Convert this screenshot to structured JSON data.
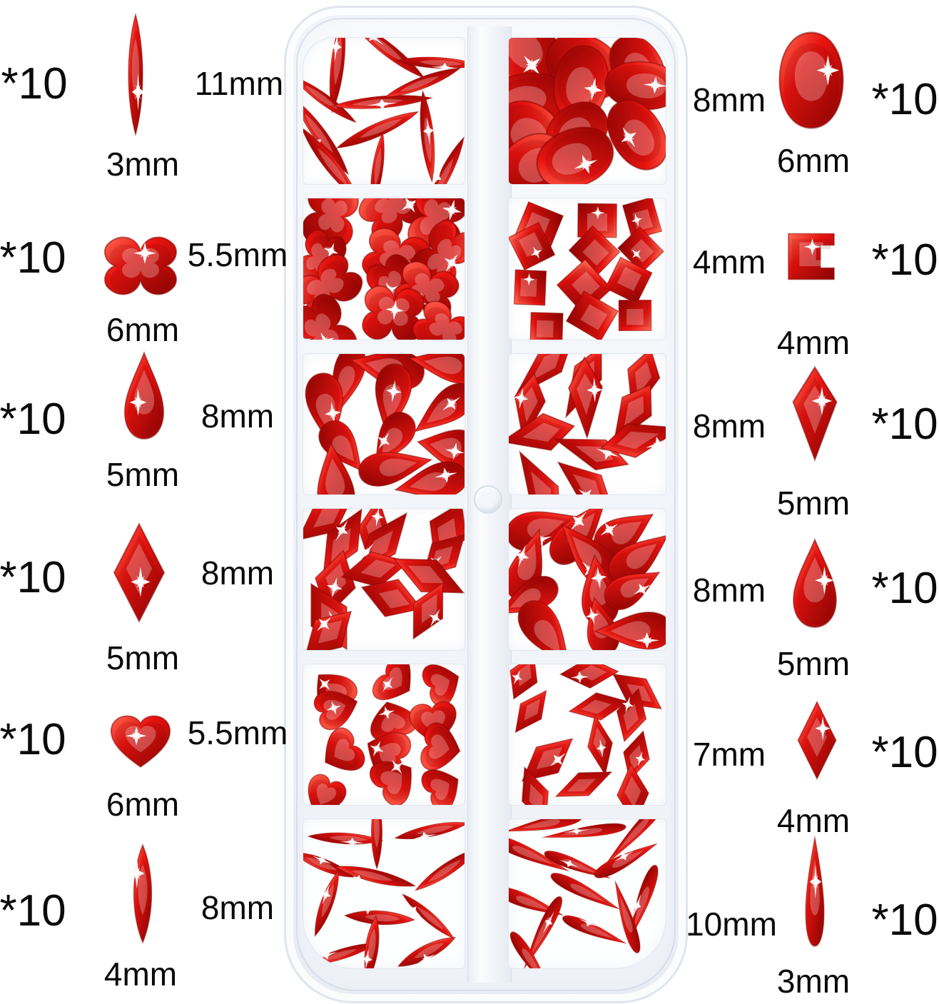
{
  "annotations": {
    "left": [
      {
        "qty": "*10",
        "shape": "marquise",
        "length": "11mm",
        "width": "3mm"
      },
      {
        "qty": "*10",
        "shape": "bow",
        "length": "5.5mm",
        "width": "6mm"
      },
      {
        "qty": "*10",
        "shape": "pear",
        "length": "8mm",
        "width": "5mm"
      },
      {
        "qty": "*10",
        "shape": "rhombus",
        "length": "8mm",
        "width": "5mm"
      },
      {
        "qty": "*10",
        "shape": "heart",
        "length": "5.5mm",
        "width": "6mm"
      },
      {
        "qty": "*10",
        "shape": "marquise",
        "length": "8mm",
        "width": "4mm"
      }
    ],
    "right": [
      {
        "qty": "*10",
        "shape": "oval",
        "length": "8mm",
        "width": "6mm"
      },
      {
        "qty": "*10",
        "shape": "squareNotch",
        "length": "4mm",
        "width": "4mm"
      },
      {
        "qty": "*10",
        "shape": "kite",
        "length": "8mm",
        "width": "5mm"
      },
      {
        "qty": "*10",
        "shape": "pear",
        "length": "8mm",
        "width": "5mm"
      },
      {
        "qty": "*10",
        "shape": "rhombus",
        "length": "7mm",
        "width": "4mm"
      },
      {
        "qty": "*10",
        "shape": "longdrop",
        "length": "10mm",
        "width": "3mm"
      }
    ]
  },
  "box": {
    "cells": [
      {
        "side": "left",
        "row": 1,
        "shape": "marquise",
        "count": 12
      },
      {
        "side": "right",
        "row": 1,
        "shape": "oval",
        "count": 11
      },
      {
        "side": "left",
        "row": 2,
        "shape": "bow",
        "count": 12
      },
      {
        "side": "right",
        "row": 2,
        "shape": "square",
        "count": 12
      },
      {
        "side": "left",
        "row": 3,
        "shape": "pear",
        "count": 12
      },
      {
        "side": "right",
        "row": 3,
        "shape": "kite",
        "count": 11
      },
      {
        "side": "left",
        "row": 4,
        "shape": "rhombus",
        "count": 13
      },
      {
        "side": "right",
        "row": 4,
        "shape": "pear",
        "count": 12
      },
      {
        "side": "left",
        "row": 5,
        "shape": "heart",
        "count": 12
      },
      {
        "side": "right",
        "row": 5,
        "shape": "rhombusS",
        "count": 12
      },
      {
        "side": "left",
        "row": 6,
        "shape": "marquiseS",
        "count": 12
      },
      {
        "side": "right",
        "row": 6,
        "shape": "longdrop",
        "count": 13
      }
    ]
  },
  "colors": {
    "gem_highlight": "#ff6a55",
    "gem_mid": "#e81410",
    "gem_dark": "#8f0402",
    "box_edge": "#e0e5ee",
    "sparkle": "#ffffff"
  }
}
